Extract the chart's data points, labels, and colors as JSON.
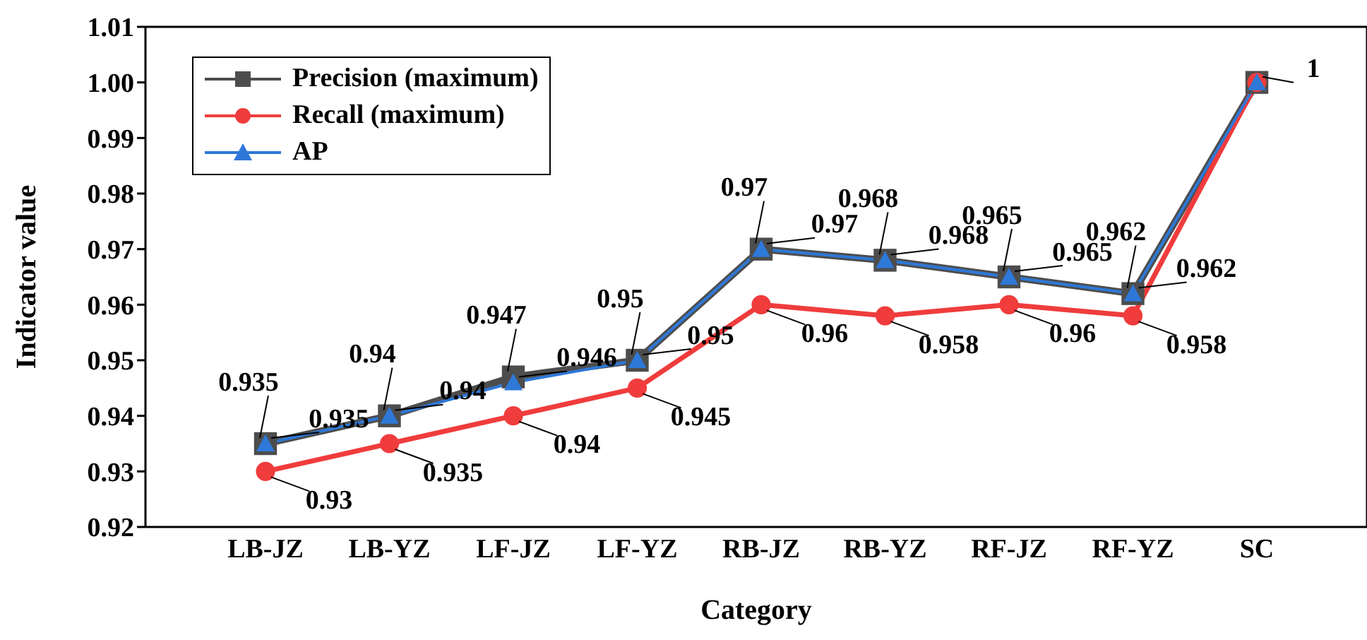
{
  "chart_data": {
    "type": "line",
    "xlabel": "Category",
    "ylabel": "Indicator value",
    "categories": [
      "LB-JZ",
      "LB-YZ",
      "LF-JZ",
      "LF-YZ",
      "RB-JZ",
      "RB-YZ",
      "RF-JZ",
      "RF-YZ",
      "SC"
    ],
    "series": [
      {
        "name": "Precision (maximum)",
        "color": "#4d4d4d",
        "marker": "square",
        "values": [
          0.935,
          0.94,
          0.947,
          0.95,
          0.97,
          0.968,
          0.965,
          0.962,
          1
        ],
        "value_labels": [
          "0.935",
          "0.94",
          "0.947",
          "0.95",
          "0.97",
          "0.968",
          "0.965",
          "0.962",
          "1"
        ]
      },
      {
        "name": "Recall (maximum)",
        "color": "#f03c3c",
        "marker": "circle",
        "values": [
          0.93,
          0.935,
          0.94,
          0.945,
          0.96,
          0.958,
          0.96,
          0.958,
          1
        ],
        "value_labels": [
          "0.93",
          "0.935",
          "0.94",
          "0.945",
          "0.96",
          "0.958",
          "0.96",
          "0.958",
          null
        ]
      },
      {
        "name": "AP",
        "color": "#2e78d8",
        "marker": "triangle",
        "values": [
          0.935,
          0.94,
          0.946,
          0.95,
          0.97,
          0.968,
          0.965,
          0.962,
          1
        ],
        "value_labels": [
          "0.935",
          "0.94",
          "0.946",
          "0.95",
          "0.97",
          "0.968",
          "0.965",
          "0.962",
          null
        ]
      }
    ],
    "ylim": [
      0.92,
      1.01
    ],
    "yticks": [
      {
        "value": 0.92,
        "label": "0.92"
      },
      {
        "value": 0.93,
        "label": "0.93"
      },
      {
        "value": 0.94,
        "label": "0.94"
      },
      {
        "value": 0.95,
        "label": "0.95"
      },
      {
        "value": 0.96,
        "label": "0.96"
      },
      {
        "value": 0.97,
        "label": "0.97"
      },
      {
        "value": 0.98,
        "label": "0.98"
      },
      {
        "value": 0.99,
        "label": "0.99"
      },
      {
        "value": 1.0,
        "label": "1.00"
      },
      {
        "value": 1.01,
        "label": "1.01"
      }
    ],
    "grid": false,
    "legend": "top left"
  }
}
